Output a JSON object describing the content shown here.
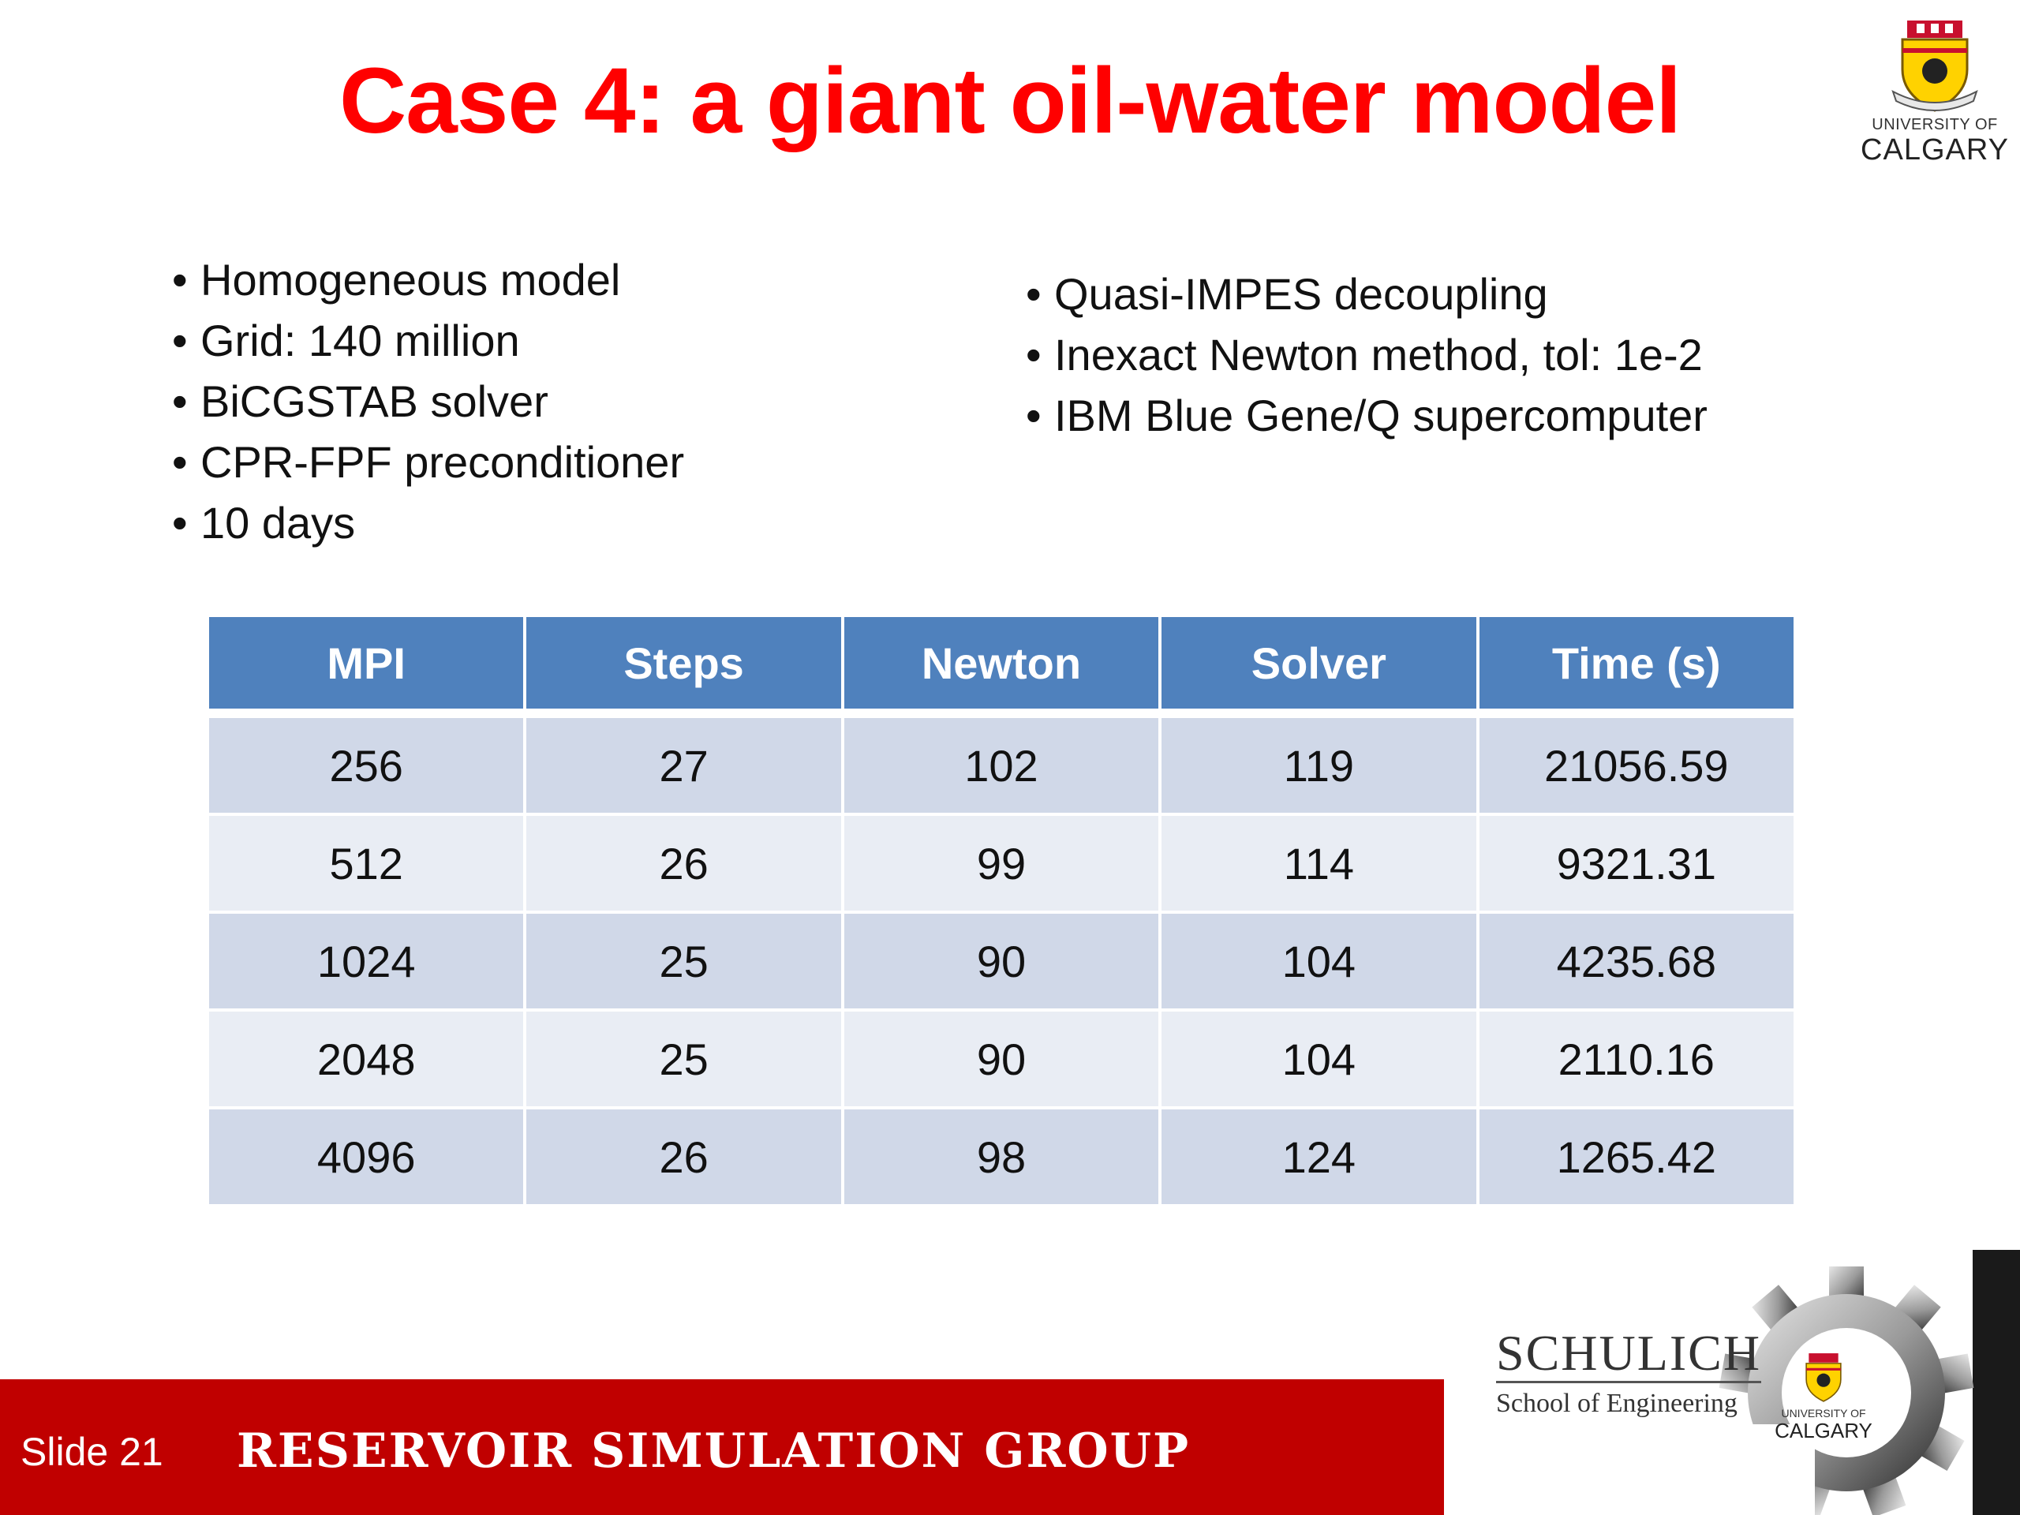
{
  "slide": {
    "title": "Case 4: a giant oil-water model"
  },
  "logo_top": {
    "line1": "UNIVERSITY OF",
    "line2": "CALGARY",
    "icon": "university-crest-icon"
  },
  "bullets_left": [
    "Homogeneous model",
    "Grid: 140 million",
    "BiCGSTAB solver",
    "CPR-FPF preconditioner",
    "10 days"
  ],
  "bullets_right": [
    "Quasi-IMPES decoupling",
    "Inexact Newton method, tol: 1e-2",
    "IBM Blue Gene/Q supercomputer"
  ],
  "bullet_char": "•",
  "table": {
    "headers": [
      "MPI",
      "Steps",
      "Newton",
      "Solver",
      "Time (s)"
    ],
    "rows": [
      [
        "256",
        "27",
        "102",
        "119",
        "21056.59"
      ],
      [
        "512",
        "26",
        "99",
        "114",
        "9321.31"
      ],
      [
        "1024",
        "25",
        "90",
        "104",
        "4235.68"
      ],
      [
        "2048",
        "25",
        "90",
        "104",
        "2110.16"
      ],
      [
        "4096",
        "26",
        "98",
        "124",
        "1265.42"
      ]
    ]
  },
  "footer": {
    "slide_label": "Slide 21",
    "group": "RESERVOIR SIMULATION GROUP",
    "schulich_name": "SCHULICH",
    "schulich_sub": "School of Engineering",
    "uc_small_line1": "UNIVERSITY OF",
    "uc_small_line2": "CALGARY"
  },
  "colors": {
    "title": "#ff0000",
    "header_bg": "#4f81bd",
    "row_odd": "#d0d8e8",
    "row_even": "#e9edf4",
    "footer_bar": "#c00000"
  }
}
